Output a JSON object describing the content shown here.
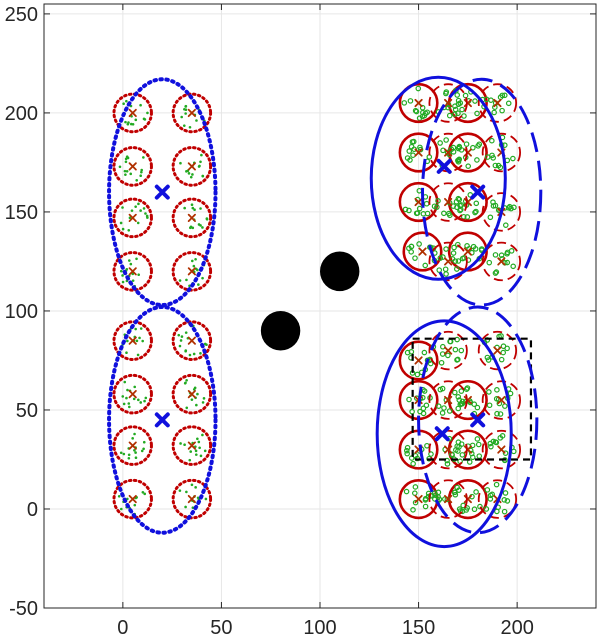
{
  "chart_data": {
    "type": "scatter",
    "title": "",
    "xlabel": "",
    "ylabel": "",
    "xlim": [
      -40,
      240
    ],
    "ylim": [
      -50,
      255
    ],
    "x_ticks": [
      "0",
      "50",
      "100",
      "150",
      "200"
    ],
    "x_tick_values": [
      0,
      50,
      100,
      150,
      200
    ],
    "y_ticks": [
      "-50",
      "0",
      "50",
      "100",
      "150",
      "200",
      "250"
    ],
    "y_tick_values": [
      -50,
      0,
      50,
      100,
      150,
      200,
      250
    ],
    "grid": true,
    "colors": {
      "cluster_ellipse": "#1010dd",
      "cluster_center": "#1010dd",
      "cell_circle": "#c00000",
      "cell_center": "#b03000",
      "user_point": "#22aa22",
      "obstacle": "#000000",
      "window": "#000000"
    },
    "obstacles": [
      {
        "x": 80,
        "y": 90,
        "r": 10
      },
      {
        "x": 110,
        "y": 120,
        "r": 10
      }
    ],
    "dashed_window": {
      "x_range": [
        147,
        207
      ],
      "y_range": [
        25,
        86
      ]
    },
    "cluster_ellipses": [
      {
        "style": "dotted",
        "cx": 20,
        "cy": 160,
        "rx": 27,
        "ry": 57
      },
      {
        "style": "dotted",
        "cx": 20,
        "cy": 45,
        "rx": 27,
        "ry": 57
      },
      {
        "style": "solid",
        "cx": 160,
        "cy": 167,
        "rx": 34,
        "ry": 51
      },
      {
        "style": "dashed",
        "cx": 182,
        "cy": 160,
        "rx": 30,
        "ry": 57
      },
      {
        "style": "solid",
        "cx": 163,
        "cy": 38,
        "rx": 34,
        "ry": 57
      },
      {
        "style": "dashed",
        "cx": 180,
        "cy": 45,
        "rx": 30,
        "ry": 57
      }
    ],
    "cluster_centers": [
      {
        "x": 20,
        "y": 160
      },
      {
        "x": 20,
        "y": 45
      },
      {
        "x": 163,
        "y": 173
      },
      {
        "x": 180,
        "y": 160
      },
      {
        "x": 162,
        "y": 38
      },
      {
        "x": 180,
        "y": 45
      }
    ],
    "cells": [
      {
        "style": "dotted",
        "x": 5,
        "y": 200
      },
      {
        "style": "dotted",
        "x": 35,
        "y": 200
      },
      {
        "style": "dotted",
        "x": 5,
        "y": 173
      },
      {
        "style": "dotted",
        "x": 35,
        "y": 173
      },
      {
        "style": "dotted",
        "x": 5,
        "y": 147
      },
      {
        "style": "dotted",
        "x": 35,
        "y": 147
      },
      {
        "style": "dotted",
        "x": 5,
        "y": 120
      },
      {
        "style": "dotted",
        "x": 35,
        "y": 120
      },
      {
        "style": "dotted",
        "x": 5,
        "y": 85
      },
      {
        "style": "dotted",
        "x": 35,
        "y": 85
      },
      {
        "style": "dotted",
        "x": 5,
        "y": 58
      },
      {
        "style": "dotted",
        "x": 35,
        "y": 58
      },
      {
        "style": "dotted",
        "x": 5,
        "y": 32
      },
      {
        "style": "dotted",
        "x": 35,
        "y": 32
      },
      {
        "style": "dotted",
        "x": 5,
        "y": 5
      },
      {
        "style": "dotted",
        "x": 35,
        "y": 5
      },
      {
        "style": "solid",
        "x": 150,
        "y": 205
      },
      {
        "style": "solid",
        "x": 175,
        "y": 205
      },
      {
        "style": "solid",
        "x": 150,
        "y": 180
      },
      {
        "style": "solid",
        "x": 175,
        "y": 180
      },
      {
        "style": "solid",
        "x": 150,
        "y": 155
      },
      {
        "style": "solid",
        "x": 175,
        "y": 155
      },
      {
        "style": "solid",
        "x": 152,
        "y": 130
      },
      {
        "style": "solid",
        "x": 175,
        "y": 130
      },
      {
        "style": "dashed",
        "x": 165,
        "y": 205
      },
      {
        "style": "dashed",
        "x": 190,
        "y": 205
      },
      {
        "style": "dashed",
        "x": 165,
        "y": 180
      },
      {
        "style": "dashed",
        "x": 192,
        "y": 180
      },
      {
        "style": "dashed",
        "x": 165,
        "y": 155
      },
      {
        "style": "dashed",
        "x": 192,
        "y": 150
      },
      {
        "style": "dashed",
        "x": 165,
        "y": 125
      },
      {
        "style": "dashed",
        "x": 192,
        "y": 125
      },
      {
        "style": "solid",
        "x": 150,
        "y": 75
      },
      {
        "style": "solid",
        "x": 150,
        "y": 55
      },
      {
        "style": "solid",
        "x": 150,
        "y": 30
      },
      {
        "style": "solid",
        "x": 150,
        "y": 5
      },
      {
        "style": "solid",
        "x": 175,
        "y": 55
      },
      {
        "style": "solid",
        "x": 175,
        "y": 30
      },
      {
        "style": "solid",
        "x": 175,
        "y": 5
      },
      {
        "style": "dashed",
        "x": 165,
        "y": 80
      },
      {
        "style": "dashed",
        "x": 190,
        "y": 80
      },
      {
        "style": "dashed",
        "x": 165,
        "y": 55
      },
      {
        "style": "dashed",
        "x": 192,
        "y": 55
      },
      {
        "style": "dashed",
        "x": 165,
        "y": 30
      },
      {
        "style": "dashed",
        "x": 192,
        "y": 30
      },
      {
        "style": "dashed",
        "x": 165,
        "y": 5
      },
      {
        "style": "dashed",
        "x": 190,
        "y": 5
      }
    ]
  }
}
